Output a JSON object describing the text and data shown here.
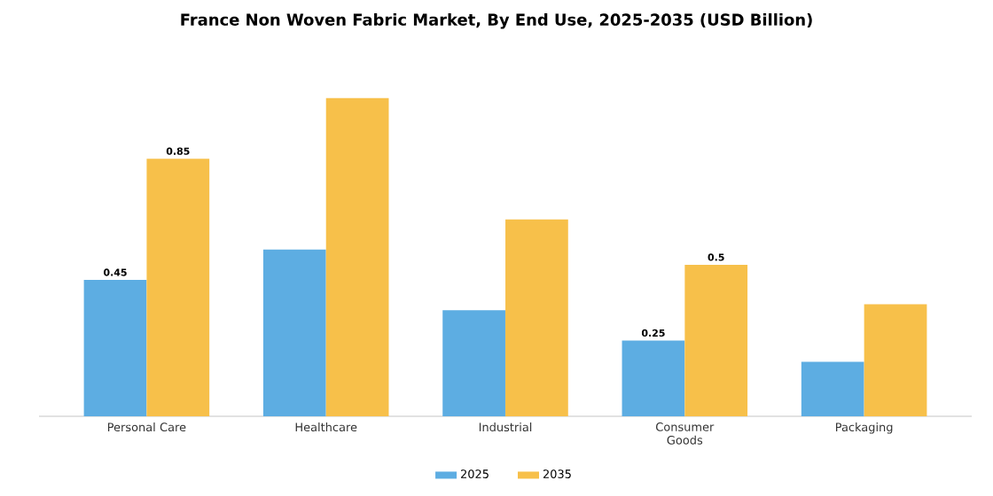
{
  "chart_data": {
    "type": "bar",
    "title": "France Non Woven Fabric Market, By End Use, 2025-2035 (USD Billion)",
    "categories": [
      "Personal Care",
      "Healthcare",
      "Industrial",
      "Consumer Goods",
      "Packaging"
    ],
    "series": [
      {
        "name": "2025",
        "color": "#5dade2",
        "values": [
          0.45,
          0.55,
          0.35,
          0.25,
          0.18
        ],
        "value_labels": [
          "0.45",
          null,
          null,
          "0.25",
          null
        ]
      },
      {
        "name": "2035",
        "color": "#f7c04a",
        "values": [
          0.85,
          1.05,
          0.65,
          0.5,
          0.37
        ],
        "value_labels": [
          "0.85",
          null,
          null,
          "0.5",
          null
        ]
      }
    ],
    "legend": "bottom",
    "tick_labels": "x"
  }
}
